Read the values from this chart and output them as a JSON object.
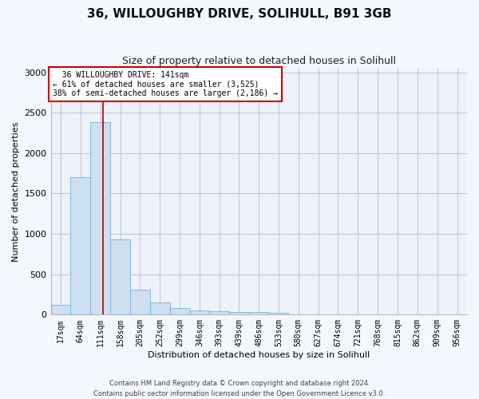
{
  "title": "36, WILLOUGHBY DRIVE, SOLIHULL, B91 3GB",
  "subtitle": "Size of property relative to detached houses in Solihull",
  "xlabel": "Distribution of detached houses by size in Solihull",
  "ylabel": "Number of detached properties",
  "bar_color": "#cce0f0",
  "bar_edge_color": "#7ab0d4",
  "background_color": "#eef2fa",
  "grid_color": "#bbbbcc",
  "categories": [
    "17sqm",
    "64sqm",
    "111sqm",
    "158sqm",
    "205sqm",
    "252sqm",
    "299sqm",
    "346sqm",
    "393sqm",
    "439sqm",
    "486sqm",
    "533sqm",
    "580sqm",
    "627sqm",
    "674sqm",
    "721sqm",
    "768sqm",
    "815sqm",
    "862sqm",
    "909sqm",
    "956sqm"
  ],
  "bar_values": [
    120,
    1700,
    2380,
    930,
    305,
    155,
    80,
    55,
    45,
    30,
    30,
    25,
    0,
    0,
    0,
    0,
    0,
    0,
    0,
    0,
    0
  ],
  "bin_left_edges": [
    17,
    64,
    111,
    158,
    205,
    252,
    299,
    346,
    393,
    439,
    486,
    533,
    580,
    627,
    674,
    721,
    768,
    815,
    862,
    909,
    956
  ],
  "bin_width": 47,
  "ylim": [
    0,
    3050
  ],
  "yticks": [
    0,
    500,
    1000,
    1500,
    2000,
    2500,
    3000
  ],
  "property_size": 141,
  "red_line_color": "#aa0000",
  "annotation_text": "  36 WILLOUGHBY DRIVE: 141sqm  \n← 61% of detached houses are smaller (3,525)\n38% of semi-detached houses are larger (2,186) →",
  "annotation_box_color": "#ffffff",
  "annotation_box_edge_color": "#cc0000",
  "footnote": "Contains HM Land Registry data © Crown copyright and database right 2024.\nContains public sector information licensed under the Open Government Licence v3.0."
}
